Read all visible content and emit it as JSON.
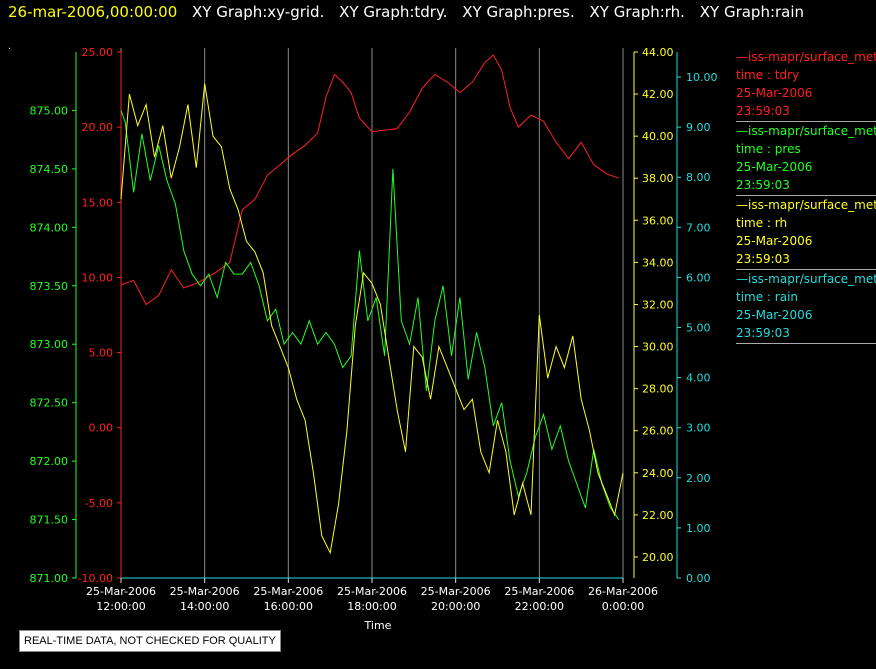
{
  "header": {
    "datetime": "26-mar-2006,00:00:00",
    "graphs": [
      "XY Graph:xy-grid.",
      "XY Graph:tdry.",
      "XY Graph:pres.",
      "XY Graph:rh.",
      "XY Graph:rain"
    ]
  },
  "dot": ".",
  "legend": [
    {
      "series": "—iss-mapr/surface_met",
      "var": "time : tdry",
      "date": "25-Mar-2006",
      "time": "23:59:03",
      "color": "#ff2020"
    },
    {
      "series": "—iss-mapr/surface_met",
      "var": "time : pres",
      "date": "25-Mar-2006",
      "time": "23:59:03",
      "color": "#22ff22"
    },
    {
      "series": "—iss-mapr/surface_met",
      "var": "time : rh",
      "date": "25-Mar-2006",
      "time": "23:59:03",
      "color": "#ffff22"
    },
    {
      "series": "—iss-mapr/surface_met",
      "var": "time : rain",
      "date": "25-Mar-2006",
      "time": "23:59:03",
      "color": "#22dddd"
    }
  ],
  "disclaimer": "REAL-TIME DATA, NOT CHECKED FOR QUALITY",
  "colors": {
    "tdry": "#ff2020",
    "pres": "#22ff22",
    "rh": "#ffff22",
    "rain": "#22dddd",
    "header_date": "#ffff00",
    "grid": "#8a8a8a",
    "text": "#ffffff"
  },
  "chart_data": {
    "type": "line",
    "xlabel": "Time",
    "x_ticks": [
      {
        "t": 12,
        "l1": "25-Mar-2006",
        "l2": "12:00:00"
      },
      {
        "t": 14,
        "l1": "25-Mar-2006",
        "l2": "14:00:00"
      },
      {
        "t": 16,
        "l1": "25-Mar-2006",
        "l2": "16:00:00"
      },
      {
        "t": 18,
        "l1": "25-Mar-2006",
        "l2": "18:00:00"
      },
      {
        "t": 20,
        "l1": "25-Mar-2006",
        "l2": "20:00:00"
      },
      {
        "t": 22,
        "l1": "25-Mar-2006",
        "l2": "22:00:00"
      },
      {
        "t": 24,
        "l1": "26-Mar-2006",
        "l2": "0:00:00"
      }
    ],
    "xlim": [
      12,
      24
    ],
    "axes": {
      "pres": {
        "range": [
          871.0,
          875.5
        ],
        "ticks": [
          "871.00",
          "871.50",
          "872.00",
          "872.50",
          "873.00",
          "873.50",
          "874.00",
          "874.50",
          "875.00"
        ]
      },
      "tdry": {
        "range": [
          -10,
          25
        ],
        "ticks": [
          "-10.00",
          "-5.00",
          "0.00",
          "5.00",
          "10.00",
          "15.00",
          "20.00",
          "25.00"
        ]
      },
      "rh": {
        "range": [
          19,
          44
        ],
        "ticks": [
          "20.00",
          "22.00",
          "24.00",
          "26.00",
          "28.00",
          "30.00",
          "32.00",
          "34.00",
          "36.00",
          "38.00",
          "40.00",
          "42.00",
          "44.00"
        ]
      },
      "rain": {
        "range": [
          0,
          10.5
        ],
        "ticks": [
          "0.00",
          "1.00",
          "2.00",
          "3.00",
          "4.00",
          "5.00",
          "6.00",
          "7.00",
          "8.00",
          "9.00",
          "10.00"
        ]
      }
    },
    "series": [
      {
        "name": "tdry",
        "color": "#ff2020",
        "x": [
          12.0,
          12.3,
          12.6,
          12.9,
          13.2,
          13.5,
          13.8,
          14.0,
          14.3,
          14.6,
          14.9,
          15.2,
          15.5,
          15.8,
          16.1,
          16.4,
          16.7,
          16.9,
          17.1,
          17.3,
          17.5,
          17.7,
          18.0,
          18.3,
          18.6,
          18.9,
          19.2,
          19.5,
          19.8,
          20.1,
          20.4,
          20.7,
          20.9,
          21.1,
          21.3,
          21.5,
          21.8,
          22.1,
          22.4,
          22.7,
          23.0,
          23.3,
          23.6,
          23.9
        ],
        "values": [
          9.5,
          9.8,
          8.2,
          8.8,
          10.5,
          9.3,
          9.6,
          9.9,
          10.4,
          11.0,
          14.5,
          15.2,
          16.8,
          17.5,
          18.2,
          18.8,
          19.6,
          22.0,
          23.5,
          23.0,
          22.3,
          20.6,
          19.7,
          19.8,
          19.9,
          21.0,
          22.6,
          23.5,
          23.0,
          22.3,
          23.0,
          24.3,
          24.8,
          23.8,
          21.3,
          20.0,
          20.8,
          20.4,
          19.0,
          17.9,
          19.0,
          17.5,
          16.9,
          16.6
        ]
      },
      {
        "name": "pres",
        "color": "#22ff22",
        "x": [
          12.0,
          12.1,
          12.3,
          12.5,
          12.7,
          12.9,
          13.1,
          13.3,
          13.5,
          13.7,
          13.9,
          14.1,
          14.3,
          14.5,
          14.7,
          14.9,
          15.1,
          15.3,
          15.5,
          15.7,
          15.9,
          16.1,
          16.3,
          16.5,
          16.7,
          16.9,
          17.1,
          17.3,
          17.5,
          17.7,
          17.9,
          18.1,
          18.3,
          18.5,
          18.7,
          18.9,
          19.1,
          19.3,
          19.5,
          19.7,
          19.9,
          20.1,
          20.3,
          20.5,
          20.7,
          20.9,
          21.1,
          21.3,
          21.5,
          21.7,
          21.9,
          22.1,
          22.3,
          22.5,
          22.7,
          22.9,
          23.1,
          23.3,
          23.5,
          23.7,
          23.9
        ],
        "values": [
          875.0,
          874.9,
          874.3,
          874.8,
          874.4,
          874.7,
          874.4,
          874.2,
          873.8,
          873.6,
          873.5,
          873.6,
          873.4,
          873.7,
          873.6,
          873.6,
          873.7,
          873.5,
          873.2,
          873.3,
          873.0,
          873.1,
          873.0,
          873.2,
          873.0,
          873.1,
          873.0,
          872.8,
          872.9,
          873.8,
          873.2,
          873.4,
          872.9,
          874.5,
          873.2,
          873.0,
          873.4,
          872.6,
          873.2,
          873.5,
          872.9,
          873.4,
          872.7,
          873.1,
          872.8,
          872.3,
          872.5,
          872.0,
          871.7,
          871.9,
          872.2,
          872.4,
          872.1,
          872.3,
          872.0,
          871.8,
          871.6,
          872.1,
          871.8,
          871.6,
          871.5
        ]
      },
      {
        "name": "rh",
        "color": "#ffff22",
        "x": [
          12.0,
          12.2,
          12.4,
          12.6,
          12.8,
          13.0,
          13.2,
          13.4,
          13.6,
          13.8,
          14.0,
          14.2,
          14.4,
          14.6,
          14.8,
          15.0,
          15.2,
          15.4,
          15.6,
          15.8,
          16.0,
          16.2,
          16.4,
          16.6,
          16.8,
          17.0,
          17.2,
          17.4,
          17.6,
          17.8,
          18.0,
          18.2,
          18.4,
          18.6,
          18.8,
          19.0,
          19.2,
          19.4,
          19.6,
          19.8,
          20.0,
          20.2,
          20.4,
          20.6,
          20.8,
          21.0,
          21.2,
          21.4,
          21.6,
          21.8,
          22.0,
          22.2,
          22.4,
          22.6,
          22.8,
          23.0,
          23.2,
          23.4,
          23.6,
          23.8,
          24.0
        ],
        "values": [
          37.0,
          42.0,
          40.5,
          41.5,
          39.0,
          40.5,
          38.0,
          39.5,
          41.5,
          38.5,
          42.5,
          40.0,
          39.5,
          37.5,
          36.5,
          35.0,
          34.5,
          33.5,
          31.0,
          30.0,
          29.0,
          27.5,
          26.5,
          24.0,
          21.0,
          20.2,
          22.5,
          26.0,
          31.0,
          33.5,
          33.0,
          32.0,
          29.5,
          27.0,
          25.0,
          30.0,
          29.5,
          27.5,
          30.0,
          29.0,
          28.0,
          27.0,
          27.5,
          25.0,
          24.0,
          26.5,
          25.0,
          22.0,
          23.5,
          22.0,
          31.5,
          28.5,
          30.0,
          29.0,
          30.5,
          27.5,
          26.0,
          24.0,
          23.0,
          22.0,
          24.0
        ]
      },
      {
        "name": "rain",
        "color": "#22dddd",
        "x": [
          12.0,
          24.0
        ],
        "values": [
          0.0,
          0.0
        ]
      }
    ]
  }
}
